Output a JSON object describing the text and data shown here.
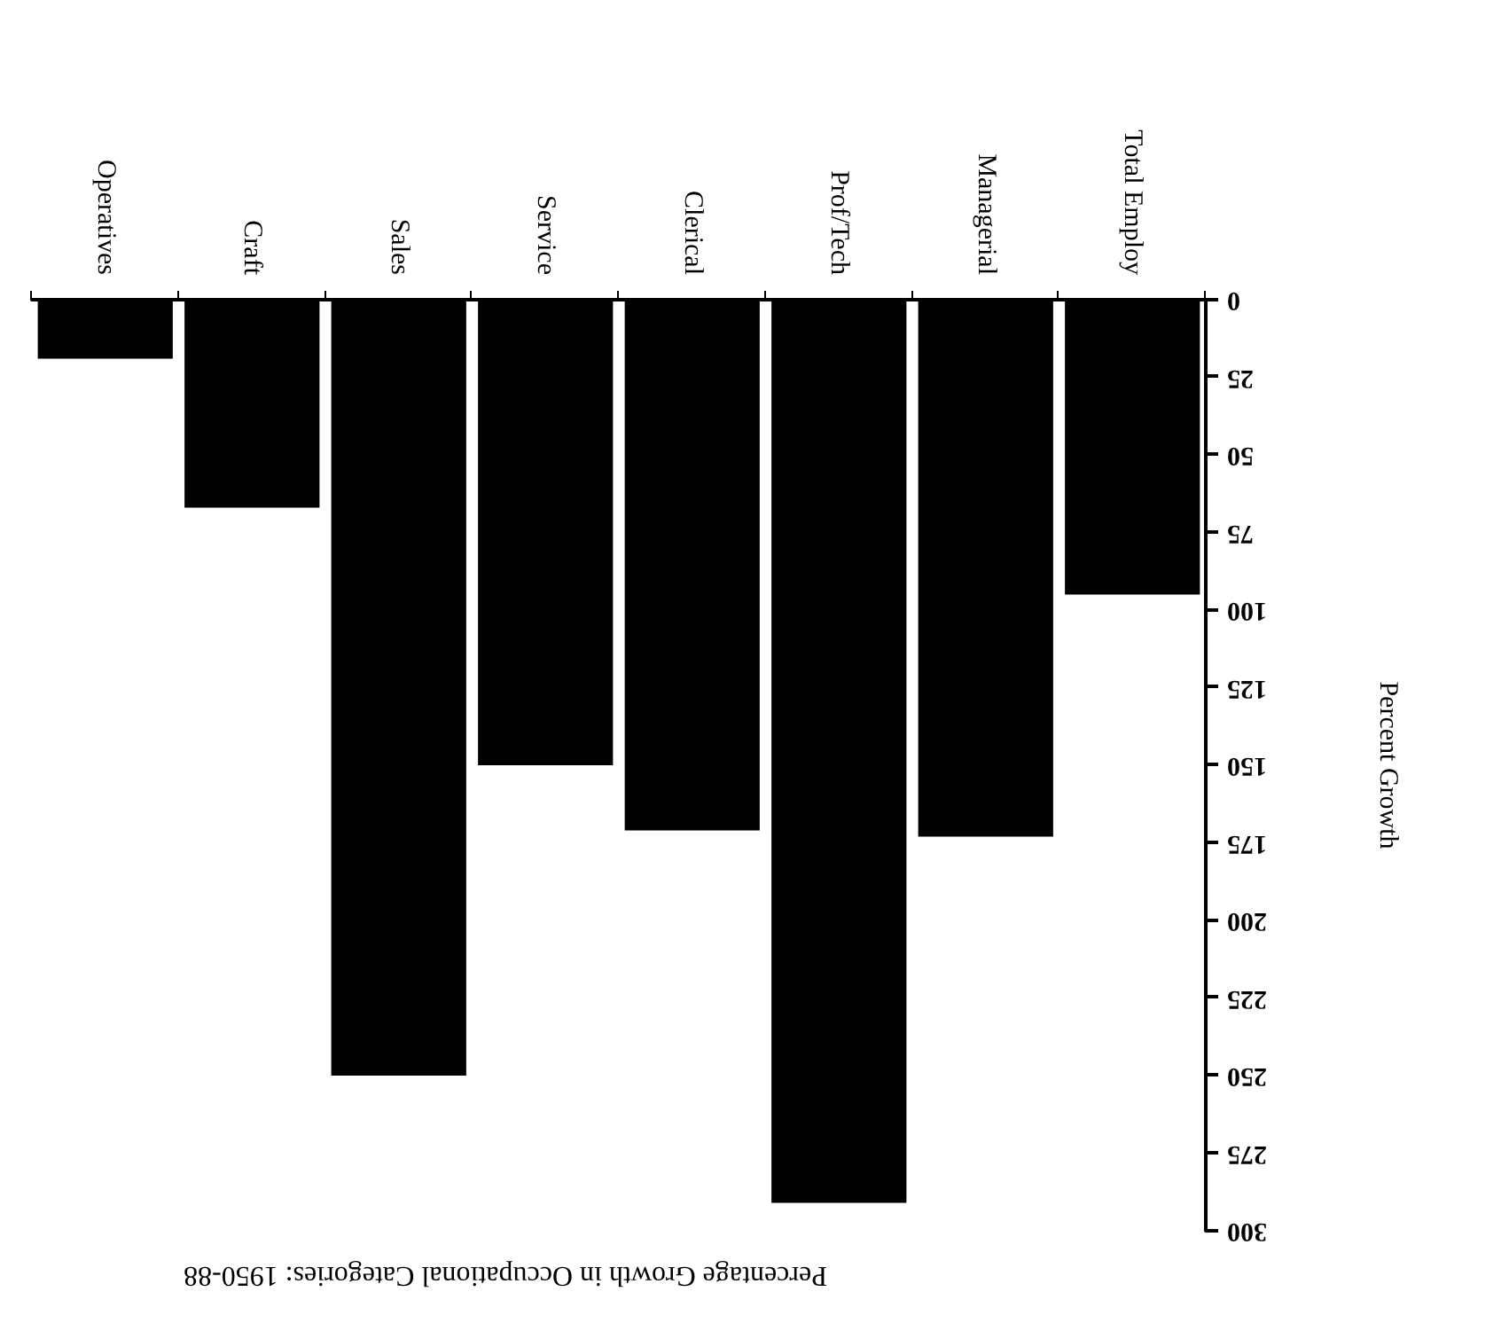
{
  "chart_data": {
    "type": "bar",
    "title": "Percentage Growth in Occupational Categories: 1950-88",
    "ylabel": "Percent Growth",
    "categories": [
      "Operatives",
      "Craft",
      "Sales",
      "Service",
      "Clerical",
      "Prof/Tech",
      "Managerial",
      "Total Employ"
    ],
    "values": [
      19,
      67,
      250,
      150,
      171,
      291,
      173,
      95
    ],
    "color": "#000000",
    "ylim": [
      300,
      0
    ],
    "yticks": [
      0,
      25,
      50,
      75,
      100,
      125,
      150,
      175,
      200,
      225,
      250,
      275,
      300
    ],
    "grid": false
  }
}
